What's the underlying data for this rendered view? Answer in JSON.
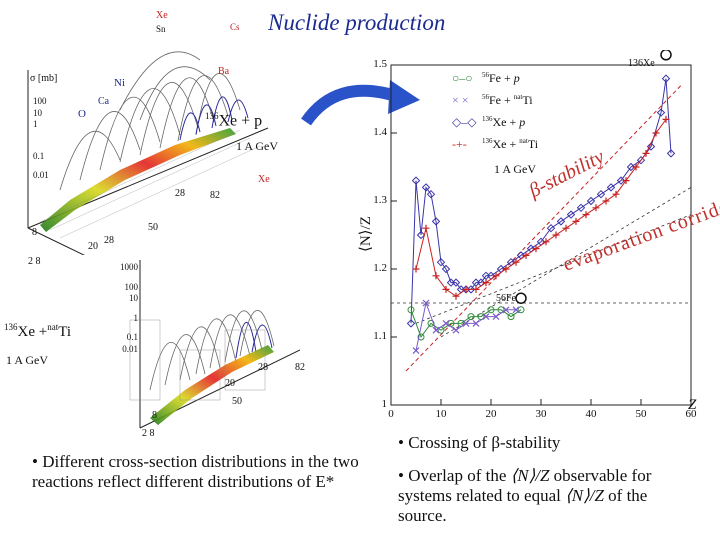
{
  "title": "Nuclide production",
  "left_plots": {
    "top": {
      "element_labels": [
        "Xe",
        "Cs",
        "Sn",
        "Ba",
        "Ni",
        "Ca",
        "O"
      ],
      "y_axis_title": "σ [mb]",
      "y_ticks": [
        "100",
        "10",
        "1",
        "0.1",
        "0.01"
      ],
      "reaction_base": "Xe + p",
      "reaction_mass": "136",
      "energy": "1 A GeV",
      "n_ticks": [
        "28",
        "82"
      ],
      "z_ticks": [
        "28",
        "50"
      ],
      "base_ticks": [
        "8",
        "2 8",
        "20"
      ]
    },
    "bottom": {
      "element_label": "Xe",
      "y_ticks": [
        "1000",
        "100",
        "10",
        "1",
        "0.1",
        "0.01"
      ],
      "reaction_base": "Xe +",
      "reaction_mass": "136",
      "target_mass": "nat",
      "target": "Ti",
      "energy": "1 A GeV",
      "n_ticks": [
        "28",
        "82"
      ],
      "z_ticks": [
        "20",
        "50"
      ],
      "base_ticks": [
        "8",
        "2 8"
      ]
    }
  },
  "chart_data": {
    "type": "scatter",
    "title": "",
    "xlabel": "Z",
    "ylabel": "⟨N⟩/Z",
    "xlim": [
      0,
      60
    ],
    "ylim": [
      1.0,
      1.5
    ],
    "x_ticks": [
      "0",
      "10",
      "20",
      "30",
      "40",
      "50",
      "60"
    ],
    "y_ticks": [
      "1",
      "1.1",
      "1.2",
      "1.3",
      "1.4",
      "1.5"
    ],
    "energy_label": "1 A GeV",
    "annotations": [
      "β-stability",
      "evaporation corridor",
      "136Xe",
      "56Fe"
    ],
    "legend": [
      {
        "mass": "56",
        "projectile": "Fe",
        "plus": "+",
        "target_mass": "",
        "target": "p",
        "marker": "circle",
        "color": "#2e8b3a"
      },
      {
        "mass": "56",
        "projectile": "Fe",
        "plus": "+",
        "target_mass": "nat",
        "target": "Ti",
        "marker": "x",
        "color": "#7b5cc9"
      },
      {
        "mass": "136",
        "projectile": "Xe",
        "plus": "+",
        "target_mass": "",
        "target": "p",
        "marker": "diamond",
        "color": "#3a34a8"
      },
      {
        "mass": "136",
        "projectile": "Xe",
        "plus": "+",
        "target_mass": "nat",
        "target": "Ti",
        "marker": "plus",
        "color": "#c82020"
      }
    ],
    "series": [
      {
        "name": "Xe+p",
        "color": "#3a34a8",
        "x": [
          4,
          5,
          6,
          7,
          8,
          9,
          10,
          11,
          12,
          13,
          14,
          15,
          16,
          17,
          18,
          19,
          20,
          22,
          24,
          26,
          28,
          30,
          32,
          34,
          36,
          38,
          40,
          42,
          44,
          46,
          48,
          50,
          52,
          54,
          55,
          56
        ],
        "y": [
          1.12,
          1.33,
          1.25,
          1.32,
          1.31,
          1.27,
          1.21,
          1.2,
          1.18,
          1.18,
          1.17,
          1.17,
          1.17,
          1.18,
          1.18,
          1.19,
          1.19,
          1.2,
          1.21,
          1.22,
          1.23,
          1.24,
          1.26,
          1.27,
          1.28,
          1.29,
          1.3,
          1.31,
          1.32,
          1.33,
          1.35,
          1.36,
          1.38,
          1.43,
          1.48,
          1.37
        ]
      },
      {
        "name": "Xe+natTi",
        "color": "#c82020",
        "x": [
          5,
          7,
          9,
          11,
          13,
          15,
          17,
          19,
          21,
          23,
          25,
          27,
          29,
          31,
          33,
          35,
          37,
          39,
          41,
          43,
          45,
          47,
          49,
          51,
          53,
          55
        ],
        "y": [
          1.2,
          1.26,
          1.19,
          1.17,
          1.16,
          1.17,
          1.17,
          1.18,
          1.19,
          1.2,
          1.21,
          1.22,
          1.23,
          1.24,
          1.25,
          1.26,
          1.27,
          1.28,
          1.29,
          1.3,
          1.31,
          1.33,
          1.35,
          1.37,
          1.4,
          1.42
        ]
      },
      {
        "name": "Fe+p",
        "color": "#2e8b3a",
        "x": [
          4,
          6,
          8,
          10,
          12,
          14,
          16,
          18,
          20,
          22,
          24,
          26
        ],
        "y": [
          1.14,
          1.1,
          1.12,
          1.11,
          1.12,
          1.12,
          1.13,
          1.13,
          1.14,
          1.14,
          1.13,
          1.14
        ]
      },
      {
        "name": "Fe+natTi",
        "color": "#7b5cc9",
        "x": [
          5,
          7,
          9,
          11,
          13,
          15,
          17,
          19,
          21,
          23,
          25
        ],
        "y": [
          1.08,
          1.15,
          1.11,
          1.12,
          1.11,
          1.12,
          1.12,
          1.13,
          1.13,
          1.14,
          1.14
        ]
      }
    ]
  },
  "bullets": {
    "left": "• Different cross-section distributions in the two reactions reflect different distributions of E*",
    "right_1_prefix": "• Crossing of ",
    "right_1_sym": "β",
    "right_1_suffix": "-stability",
    "right_2_a": "• Overlap of the ",
    "right_2_obs": "⟨N⟩/Z",
    "right_2_b": " observable for systems related to equal ",
    "right_2_obs2": "⟨N⟩/Z",
    "right_2_c": " of the source."
  },
  "colors": {
    "title": "#1b2a8f",
    "arrow": "#2b53c9"
  }
}
